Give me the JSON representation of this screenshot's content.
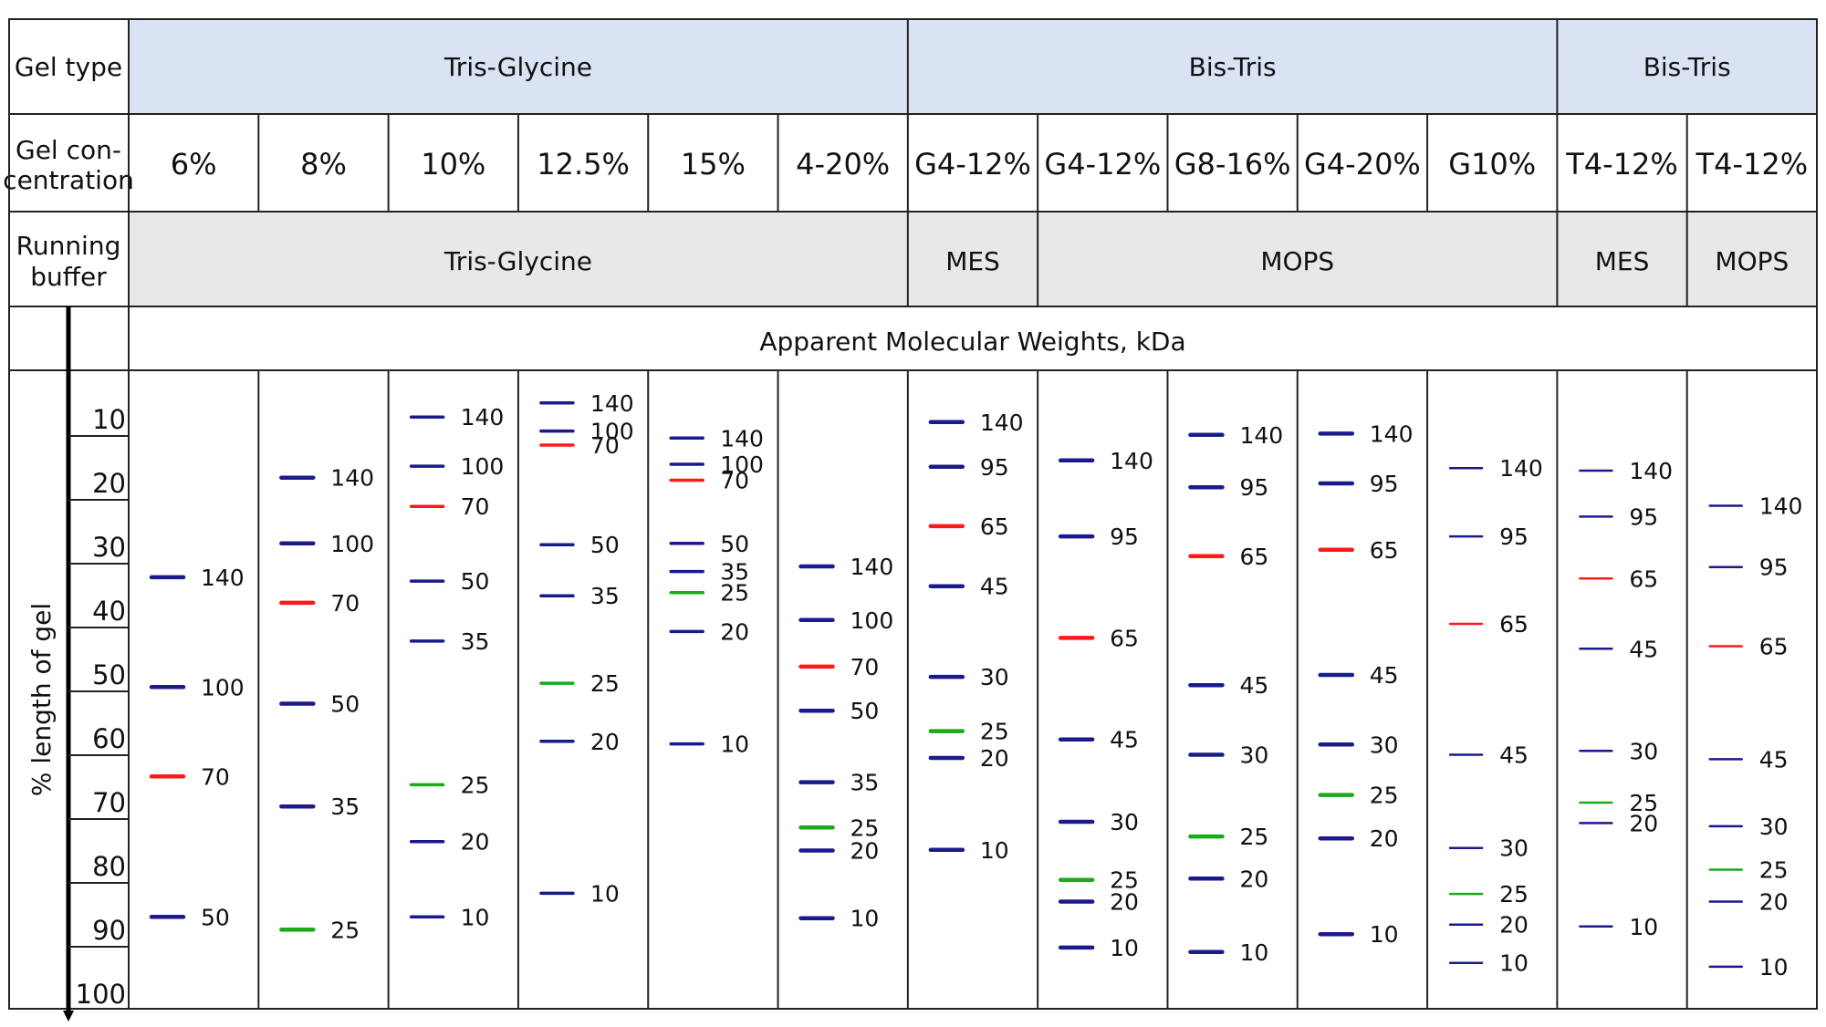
{
  "labels": {
    "gel_type": "Gel type",
    "gel_concentration": [
      "Gel con-",
      "centration"
    ],
    "running_buffer": [
      "Running",
      "buffer"
    ],
    "mw_header": "Apparent Molecular Weights, kDa",
    "y_axis": "% length of gel"
  },
  "gel_type_groups": [
    {
      "label": "Tris-Glycine",
      "span": 6
    },
    {
      "label": "Bis-Tris",
      "span": 5
    },
    {
      "label": "Bis-Tris",
      "span": 2
    }
  ],
  "buffer_groups": [
    {
      "label": "Tris-Glycine",
      "span": 6
    },
    {
      "label": "MES",
      "span": 1
    },
    {
      "label": "MOPS",
      "span": 4
    },
    {
      "label": "MES",
      "span": 1
    },
    {
      "label": "MOPS",
      "span": 1
    }
  ],
  "colors": {
    "header_blue": "#dae3f3",
    "header_gray": "#e8e8e8",
    "band_blue": "#1a1a8c",
    "band_red": "#ff1a1a",
    "band_green": "#1aaa1a"
  },
  "chart_data": {
    "type": "table",
    "y_ticks": [
      10,
      20,
      30,
      40,
      50,
      60,
      70,
      80,
      90,
      100
    ],
    "ylim": [
      2,
      100
    ],
    "columns": [
      {
        "concentration": "6%",
        "bands": [
          {
            "mw": "140",
            "y": 34.7,
            "color": "blue"
          },
          {
            "mw": "100",
            "y": 51.9,
            "color": "blue"
          },
          {
            "mw": "70",
            "y": 65.9,
            "color": "red"
          },
          {
            "mw": "50",
            "y": 87.9,
            "color": "blue"
          }
        ]
      },
      {
        "concentration": "8%",
        "bands": [
          {
            "mw": "140",
            "y": 19.1,
            "color": "blue"
          },
          {
            "mw": "100",
            "y": 29.4,
            "color": "blue"
          },
          {
            "mw": "70",
            "y": 38.7,
            "color": "red"
          },
          {
            "mw": "50",
            "y": 54.5,
            "color": "blue"
          },
          {
            "mw": "35",
            "y": 70.6,
            "color": "blue"
          },
          {
            "mw": "25",
            "y": 89.9,
            "color": "green"
          }
        ]
      },
      {
        "concentration": "10%",
        "bands": [
          {
            "mw": "140",
            "y": 9.6,
            "color": "blue"
          },
          {
            "mw": "100",
            "y": 17.3,
            "color": "blue"
          },
          {
            "mw": "70",
            "y": 23.6,
            "color": "red"
          },
          {
            "mw": "50",
            "y": 35.3,
            "color": "blue"
          },
          {
            "mw": "35",
            "y": 44.7,
            "color": "blue"
          },
          {
            "mw": "25",
            "y": 67.2,
            "color": "green"
          },
          {
            "mw": "20",
            "y": 76.1,
            "color": "blue"
          },
          {
            "mw": "10",
            "y": 87.9,
            "color": "blue"
          }
        ]
      },
      {
        "concentration": "12.5%",
        "bands": [
          {
            "mw": "140",
            "y": 7.4,
            "color": "blue"
          },
          {
            "mw": "100",
            "y": 11.8,
            "color": "blue"
          },
          {
            "mw": "70",
            "y": 14.0,
            "color": "red"
          },
          {
            "mw": "50",
            "y": 29.6,
            "color": "blue"
          },
          {
            "mw": "35",
            "y": 37.6,
            "color": "blue"
          },
          {
            "mw": "25",
            "y": 51.3,
            "color": "green"
          },
          {
            "mw": "20",
            "y": 60.4,
            "color": "blue"
          },
          {
            "mw": "10",
            "y": 84.2,
            "color": "blue"
          }
        ]
      },
      {
        "concentration": "15%",
        "bands": [
          {
            "mw": "140",
            "y": 12.9,
            "color": "blue"
          },
          {
            "mw": "100",
            "y": 17.0,
            "color": "blue"
          },
          {
            "mw": "70",
            "y": 19.5,
            "color": "red"
          },
          {
            "mw": "50",
            "y": 29.4,
            "color": "blue"
          },
          {
            "mw": "35",
            "y": 33.8,
            "color": "blue"
          },
          {
            "mw": "25",
            "y": 37.1,
            "color": "green"
          },
          {
            "mw": "20",
            "y": 43.2,
            "color": "blue"
          },
          {
            "mw": "10",
            "y": 60.8,
            "color": "blue"
          }
        ]
      },
      {
        "concentration": "4-20%",
        "bands": [
          {
            "mw": "140",
            "y": 33.0,
            "color": "blue"
          },
          {
            "mw": "100",
            "y": 41.4,
            "color": "blue"
          },
          {
            "mw": "70",
            "y": 48.7,
            "color": "red"
          },
          {
            "mw": "50",
            "y": 55.6,
            "color": "blue"
          },
          {
            "mw": "35",
            "y": 66.8,
            "color": "blue"
          },
          {
            "mw": "25",
            "y": 73.9,
            "color": "green"
          },
          {
            "mw": "20",
            "y": 77.5,
            "color": "blue"
          },
          {
            "mw": "10",
            "y": 88.1,
            "color": "blue"
          }
        ]
      },
      {
        "concentration": "G4-12%",
        "bands": [
          {
            "mw": "140",
            "y": 10.4,
            "color": "blue"
          },
          {
            "mw": "95",
            "y": 17.4,
            "color": "blue"
          },
          {
            "mw": "65",
            "y": 26.7,
            "color": "red"
          },
          {
            "mw": "45",
            "y": 36.1,
            "color": "blue"
          },
          {
            "mw": "30",
            "y": 50.3,
            "color": "blue"
          },
          {
            "mw": "25",
            "y": 58.8,
            "color": "green"
          },
          {
            "mw": "20",
            "y": 63.0,
            "color": "blue"
          },
          {
            "mw": "10",
            "y": 77.4,
            "color": "blue"
          }
        ]
      },
      {
        "concentration": "G4-12%",
        "bands": [
          {
            "mw": "140",
            "y": 16.4,
            "color": "blue"
          },
          {
            "mw": "95",
            "y": 28.3,
            "color": "blue"
          },
          {
            "mw": "65",
            "y": 44.2,
            "color": "red"
          },
          {
            "mw": "45",
            "y": 60.1,
            "color": "blue"
          },
          {
            "mw": "30",
            "y": 73.0,
            "color": "blue"
          },
          {
            "mw": "25",
            "y": 82.1,
            "color": "green"
          },
          {
            "mw": "20",
            "y": 85.5,
            "color": "blue"
          },
          {
            "mw": "10",
            "y": 92.7,
            "color": "blue"
          }
        ]
      },
      {
        "concentration": "G8-16%",
        "bands": [
          {
            "mw": "140",
            "y": 12.4,
            "color": "blue"
          },
          {
            "mw": "95",
            "y": 20.6,
            "color": "blue"
          },
          {
            "mw": "65",
            "y": 31.4,
            "color": "red"
          },
          {
            "mw": "45",
            "y": 51.6,
            "color": "blue"
          },
          {
            "mw": "30",
            "y": 62.5,
            "color": "blue"
          },
          {
            "mw": "25",
            "y": 75.3,
            "color": "green"
          },
          {
            "mw": "20",
            "y": 81.9,
            "color": "blue"
          },
          {
            "mw": "10",
            "y": 93.4,
            "color": "blue"
          }
        ]
      },
      {
        "concentration": "G4-20%",
        "bands": [
          {
            "mw": "140",
            "y": 12.2,
            "color": "blue"
          },
          {
            "mw": "95",
            "y": 20.0,
            "color": "blue"
          },
          {
            "mw": "65",
            "y": 30.4,
            "color": "red"
          },
          {
            "mw": "45",
            "y": 50.0,
            "color": "blue"
          },
          {
            "mw": "30",
            "y": 60.9,
            "color": "blue"
          },
          {
            "mw": "25",
            "y": 68.8,
            "color": "green"
          },
          {
            "mw": "20",
            "y": 75.6,
            "color": "blue"
          },
          {
            "mw": "10",
            "y": 90.6,
            "color": "blue"
          }
        ]
      },
      {
        "concentration": "G10%",
        "bands": [
          {
            "mw": "140",
            "y": 17.6,
            "color": "blue"
          },
          {
            "mw": "95",
            "y": 28.3,
            "color": "blue"
          },
          {
            "mw": "65",
            "y": 42.0,
            "color": "red"
          },
          {
            "mw": "45",
            "y": 62.5,
            "color": "blue"
          },
          {
            "mw": "30",
            "y": 77.1,
            "color": "blue"
          },
          {
            "mw": "25",
            "y": 84.3,
            "color": "green"
          },
          {
            "mw": "20",
            "y": 89.1,
            "color": "blue"
          },
          {
            "mw": "10",
            "y": 95.1,
            "color": "blue"
          }
        ]
      },
      {
        "concentration": "T4-12%",
        "bands": [
          {
            "mw": "140",
            "y": 18.0,
            "color": "blue"
          },
          {
            "mw": "95",
            "y": 25.2,
            "color": "blue"
          },
          {
            "mw": "65",
            "y": 34.9,
            "color": "red"
          },
          {
            "mw": "45",
            "y": 45.9,
            "color": "blue"
          },
          {
            "mw": "30",
            "y": 61.9,
            "color": "blue"
          },
          {
            "mw": "25",
            "y": 70.0,
            "color": "green"
          },
          {
            "mw": "20",
            "y": 73.2,
            "color": "blue"
          },
          {
            "mw": "10",
            "y": 89.4,
            "color": "blue"
          }
        ]
      },
      {
        "concentration": "T4-12%",
        "bands": [
          {
            "mw": "140",
            "y": 23.5,
            "color": "blue"
          },
          {
            "mw": "95",
            "y": 33.1,
            "color": "blue"
          },
          {
            "mw": "65",
            "y": 45.5,
            "color": "red"
          },
          {
            "mw": "45",
            "y": 63.2,
            "color": "blue"
          },
          {
            "mw": "30",
            "y": 73.7,
            "color": "blue"
          },
          {
            "mw": "25",
            "y": 80.5,
            "color": "green"
          },
          {
            "mw": "20",
            "y": 85.5,
            "color": "blue"
          },
          {
            "mw": "10",
            "y": 95.7,
            "color": "blue"
          }
        ]
      }
    ]
  }
}
